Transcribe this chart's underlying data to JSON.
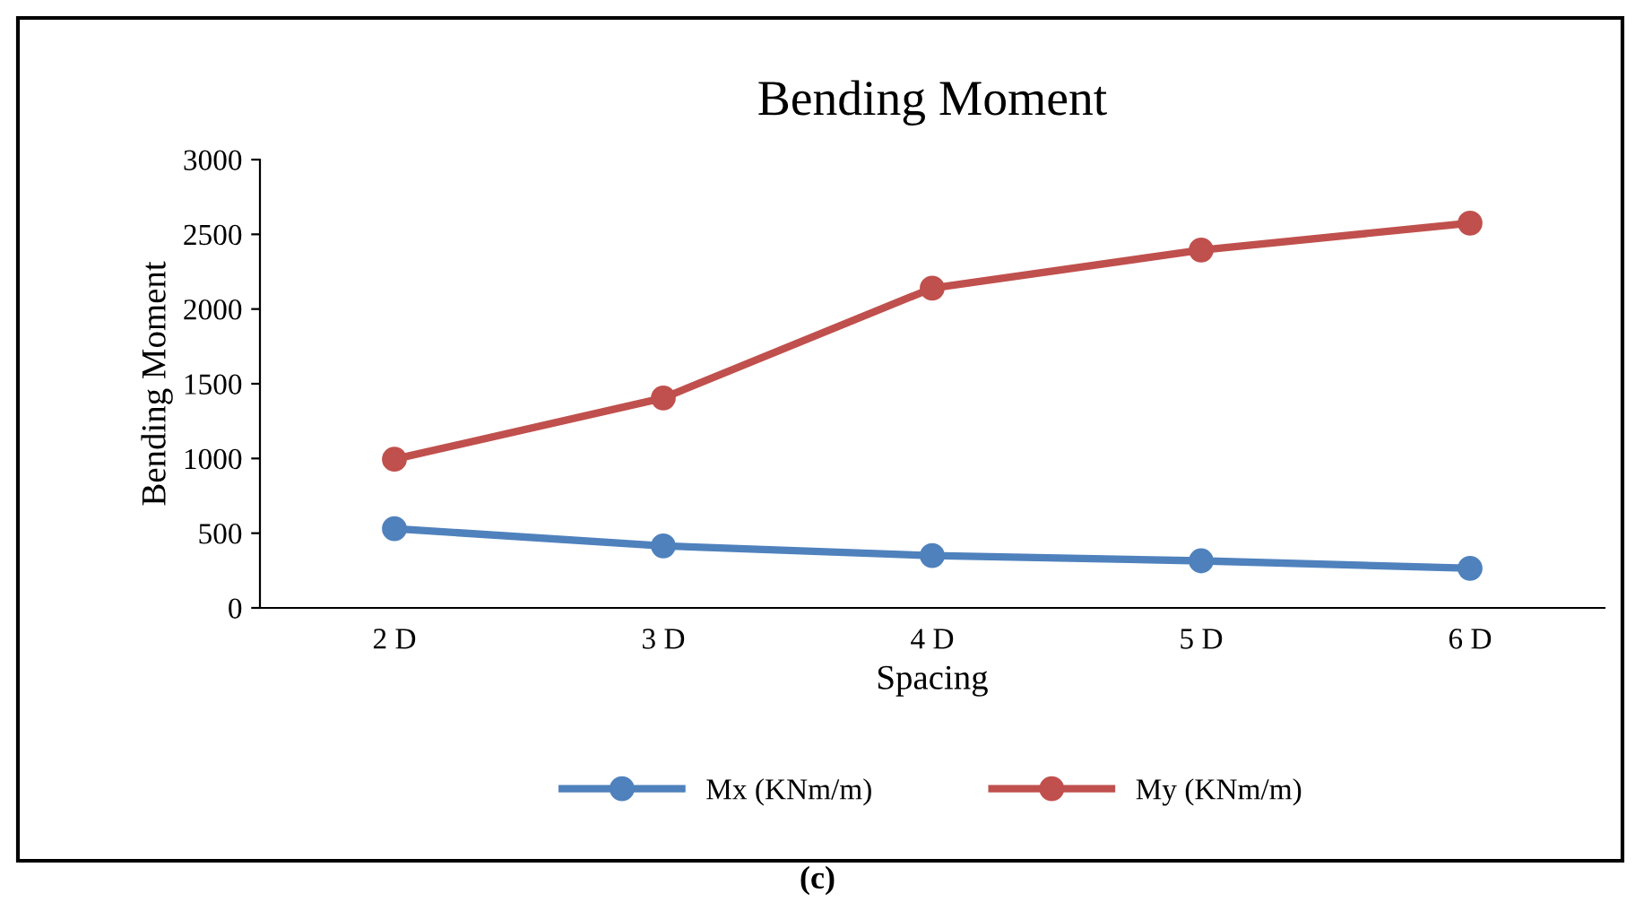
{
  "chart_data": {
    "type": "line",
    "title": "Bending Moment",
    "xlabel": "Spacing",
    "ylabel": "Bending Moment",
    "categories": [
      "2 D",
      "3 D",
      "4 D",
      "5 D",
      "6 D"
    ],
    "series": [
      {
        "name": "Mx (KNm/m)",
        "color": "#4f81bd",
        "values": [
          530,
          415,
          350,
          315,
          265
        ]
      },
      {
        "name": "My (KNm/m)",
        "color": "#c0504d",
        "values": [
          995,
          1405,
          2140,
          2395,
          2575
        ]
      }
    ],
    "ylim": [
      0,
      3000
    ],
    "yticks": [
      0,
      500,
      1000,
      1500,
      2000,
      2500,
      3000
    ],
    "grid": false,
    "legend": "bottom",
    "marker": "circle",
    "line_style": "solid",
    "annotations": [
      "(c)"
    ]
  }
}
